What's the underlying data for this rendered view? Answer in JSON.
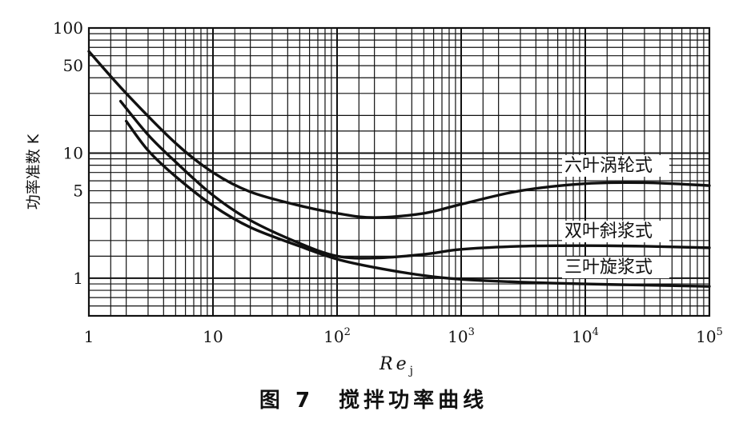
{
  "chart_data": {
    "type": "line",
    "x_scale": "log",
    "y_scale": "log",
    "xlim": [
      1,
      100000
    ],
    "ylim": [
      0.5,
      100
    ],
    "xlabel": "Re",
    "xlabel_subscript": "j",
    "ylabel": "功率准数 K",
    "x_ticks": [
      {
        "value": 1,
        "base": "1",
        "exp": ""
      },
      {
        "value": 10,
        "base": "10",
        "exp": ""
      },
      {
        "value": 100,
        "base": "10",
        "exp": "2"
      },
      {
        "value": 1000,
        "base": "10",
        "exp": "3"
      },
      {
        "value": 10000,
        "base": "10",
        "exp": "4"
      },
      {
        "value": 100000,
        "base": "10",
        "exp": "5"
      }
    ],
    "y_ticks": [
      {
        "value": 100,
        "label": "100"
      },
      {
        "value": 50,
        "label": "50"
      },
      {
        "value": 10,
        "label": "10"
      },
      {
        "value": 5,
        "label": "5"
      },
      {
        "value": 1,
        "label": "1"
      }
    ],
    "grid": true,
    "series": [
      {
        "name": "六叶涡轮式",
        "x": [
          1,
          2,
          5,
          10,
          20,
          50,
          100,
          200,
          500,
          1000,
          3000,
          10000,
          30000,
          100000
        ],
        "y": [
          65,
          30,
          12,
          7,
          4.9,
          3.8,
          3.3,
          3.05,
          3.3,
          3.9,
          5.0,
          5.7,
          5.8,
          5.5
        ]
      },
      {
        "name": "双叶斜浆式",
        "x": [
          1.8,
          3,
          5,
          10,
          20,
          50,
          100,
          200,
          500,
          1000,
          3000,
          10000,
          30000,
          100000
        ],
        "y": [
          26,
          14,
          8.5,
          4.6,
          2.9,
          1.9,
          1.5,
          1.45,
          1.55,
          1.7,
          1.8,
          1.82,
          1.8,
          1.75
        ]
      },
      {
        "name": "三叶旋浆式",
        "x": [
          2,
          3,
          5,
          10,
          20,
          50,
          100,
          200,
          500,
          1000,
          3000,
          10000,
          30000,
          100000
        ],
        "y": [
          18,
          10.5,
          6.5,
          3.8,
          2.55,
          1.8,
          1.42,
          1.22,
          1.05,
          0.98,
          0.93,
          0.9,
          0.88,
          0.86
        ]
      }
    ]
  },
  "caption": "图 7　搅拌功率曲线"
}
